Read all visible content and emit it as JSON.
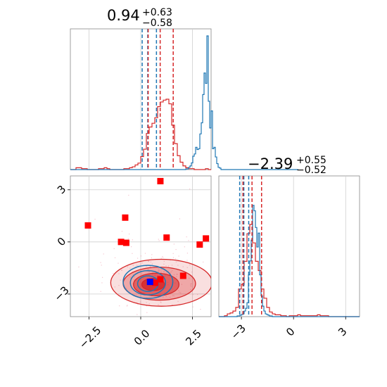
{
  "chart_data": {
    "type": "corner",
    "parameters": [
      {
        "title": {
          "median": "0.94",
          "upper": "+0.63",
          "lower": "−0.58"
        }
      },
      {
        "title": {
          "median": "−2.39",
          "upper": "+0.55",
          "lower": "−0.52"
        }
      }
    ],
    "x_ticks_param1": [
      -2.5,
      0.0,
      2.5
    ],
    "x_tick_labels_param1": [
      "−2.5",
      "0.0",
      "2.5"
    ],
    "x_ticks_param2": [
      -3,
      0,
      3
    ],
    "x_tick_labels_param2": [
      "−3",
      "0",
      "3"
    ],
    "y_ticks_param2": [
      -3,
      0,
      3
    ],
    "y_tick_labels_param2": [
      "−3",
      "0",
      "3"
    ],
    "xlim_param1": [
      -3.4,
      3.4
    ],
    "xlim_param2": [
      -4.3,
      3.8
    ],
    "grid": true,
    "colors": {
      "blue": "#1f77b4",
      "red": "#d62728",
      "marker_red": "#ff0000",
      "marker_blue": "#0000ff"
    },
    "hist_param1": {
      "blue": {
        "x_start": -3.4,
        "bin_width": 0.068,
        "counts": [
          0,
          0,
          0,
          0,
          0,
          0,
          0,
          0,
          0,
          0,
          0,
          0,
          0,
          0,
          0,
          0,
          0,
          0,
          0,
          0,
          0,
          0,
          0,
          0,
          0,
          0,
          0,
          0,
          0,
          0,
          0,
          0,
          0,
          0,
          0,
          0,
          0,
          0,
          0,
          0,
          0,
          0,
          0,
          0,
          0,
          0,
          0,
          0,
          0,
          0,
          0,
          0,
          0,
          0,
          0,
          0,
          0,
          0,
          0,
          0,
          0,
          0,
          0,
          0,
          0,
          0,
          0,
          0,
          0,
          0,
          0,
          0,
          0,
          0,
          0,
          0,
          0,
          0,
          0,
          0,
          0,
          0,
          1,
          1,
          3,
          5,
          9,
          18,
          21,
          30,
          27,
          28,
          48,
          63,
          101,
          130,
          116,
          180,
          92,
          56,
          79,
          28,
          30,
          17,
          8,
          3,
          2,
          0,
          0,
          0,
          0,
          0,
          0,
          0,
          0,
          0,
          0,
          0,
          0,
          0,
          0,
          0,
          0,
          0,
          0,
          0,
          0,
          0,
          0,
          0,
          0,
          0,
          0,
          0,
          0,
          0,
          0,
          0,
          0,
          0,
          0,
          0,
          0,
          0,
          0,
          0,
          0,
          0,
          0,
          0,
          0,
          0,
          0,
          0,
          0,
          0,
          0,
          0,
          0,
          0,
          0,
          0
        ]
      },
      "red": {
        "x_start": -3.4,
        "bin_width": 0.136,
        "counts": [
          0,
          0,
          2,
          2,
          1,
          1,
          0,
          0,
          0,
          0,
          1,
          1,
          2,
          1,
          0,
          0,
          0,
          0,
          0,
          1,
          1,
          2,
          3,
          5,
          7,
          14,
          22,
          39,
          46,
          50,
          56,
          68,
          73,
          75,
          76,
          71,
          48,
          28,
          15,
          8,
          4,
          2,
          1,
          1,
          0,
          0,
          0,
          0,
          1,
          0
        ]
      },
      "blue_quantiles": [
        0.07,
        0.34,
        0.76
      ],
      "red_quantiles": [
        0.36,
        0.94,
        1.57
      ]
    },
    "hist_param2": {
      "blue": {
        "x_start": -4.3,
        "bin_width": 0.081,
        "counts": [
          0,
          0,
          0,
          0,
          0,
          0,
          0,
          0,
          0,
          0,
          0,
          0,
          0,
          1,
          1,
          2,
          3,
          5,
          8,
          12,
          20,
          60,
          80,
          110,
          160,
          152,
          128,
          100,
          120,
          60,
          30,
          15,
          8,
          4,
          3,
          2,
          1,
          1,
          0,
          0,
          0,
          0,
          0,
          0,
          0,
          0,
          0,
          0,
          0,
          0,
          0,
          0,
          0,
          0,
          0,
          0,
          0,
          0,
          0,
          0,
          0,
          0,
          0,
          0,
          0,
          0,
          0,
          0,
          0,
          0,
          0,
          0,
          0,
          0,
          0,
          0,
          0,
          0,
          0,
          0,
          0,
          0,
          0,
          0,
          0,
          0,
          0,
          0,
          0,
          0,
          0,
          0,
          0,
          0,
          0,
          0,
          0,
          0,
          0,
          0
        ]
      },
      "red": {
        "x_start": -4.3,
        "bin_width": 0.162,
        "counts": [
          0,
          0,
          1,
          3,
          4,
          6,
          10,
          30,
          35,
          60,
          90,
          100,
          80,
          60,
          50,
          30,
          20,
          10,
          5,
          3,
          2,
          2,
          1,
          1,
          0,
          1,
          1,
          1,
          2,
          1,
          1,
          1,
          1,
          1,
          1,
          2,
          1,
          1,
          1,
          0,
          0,
          0,
          0,
          0,
          0,
          0,
          0,
          0,
          0,
          0
        ]
      },
      "blue_quantiles": [
        -3.1,
        -2.86,
        -2.58
      ],
      "red_quantiles": [
        -2.91,
        -2.39,
        -1.84
      ]
    },
    "joint": {
      "red_squares": [
        [
          -2.55,
          0.95
        ],
        [
          -0.75,
          1.4
        ],
        [
          -0.95,
          0.0
        ],
        [
          -0.7,
          -0.05
        ],
        [
          0.95,
          3.5
        ],
        [
          1.25,
          0.25
        ],
        [
          3.15,
          0.2
        ],
        [
          2.85,
          -0.15
        ],
        [
          2.05,
          -1.95
        ],
        [
          0.95,
          -2.15
        ],
        [
          0.7,
          -2.35
        ]
      ],
      "blue_squares": [
        [
          0.45,
          -2.3
        ]
      ],
      "red_contours": [
        {
          "cx": 1.0,
          "cy": -2.35,
          "rx": 2.45,
          "ry": 1.35,
          "fill_opacity": 0.15
        },
        {
          "cx": 0.9,
          "cy": -2.4,
          "rx": 1.75,
          "ry": 0.95,
          "fill_opacity": 0.3
        },
        {
          "cx": 0.75,
          "cy": -2.45,
          "rx": 1.1,
          "ry": 0.65,
          "fill_opacity": 0.55
        },
        {
          "cx": 0.6,
          "cy": -2.45,
          "rx": 0.55,
          "ry": 0.35,
          "fill_opacity": 0.8
        }
      ],
      "blue_contours": [
        {
          "cx": 0.35,
          "cy": -2.3,
          "rx": 1.2,
          "ry": 0.95
        },
        {
          "cx": 0.35,
          "cy": -2.35,
          "rx": 0.85,
          "ry": 0.7
        },
        {
          "cx": 0.35,
          "cy": -2.4,
          "rx": 0.5,
          "ry": 0.45
        }
      ]
    }
  }
}
